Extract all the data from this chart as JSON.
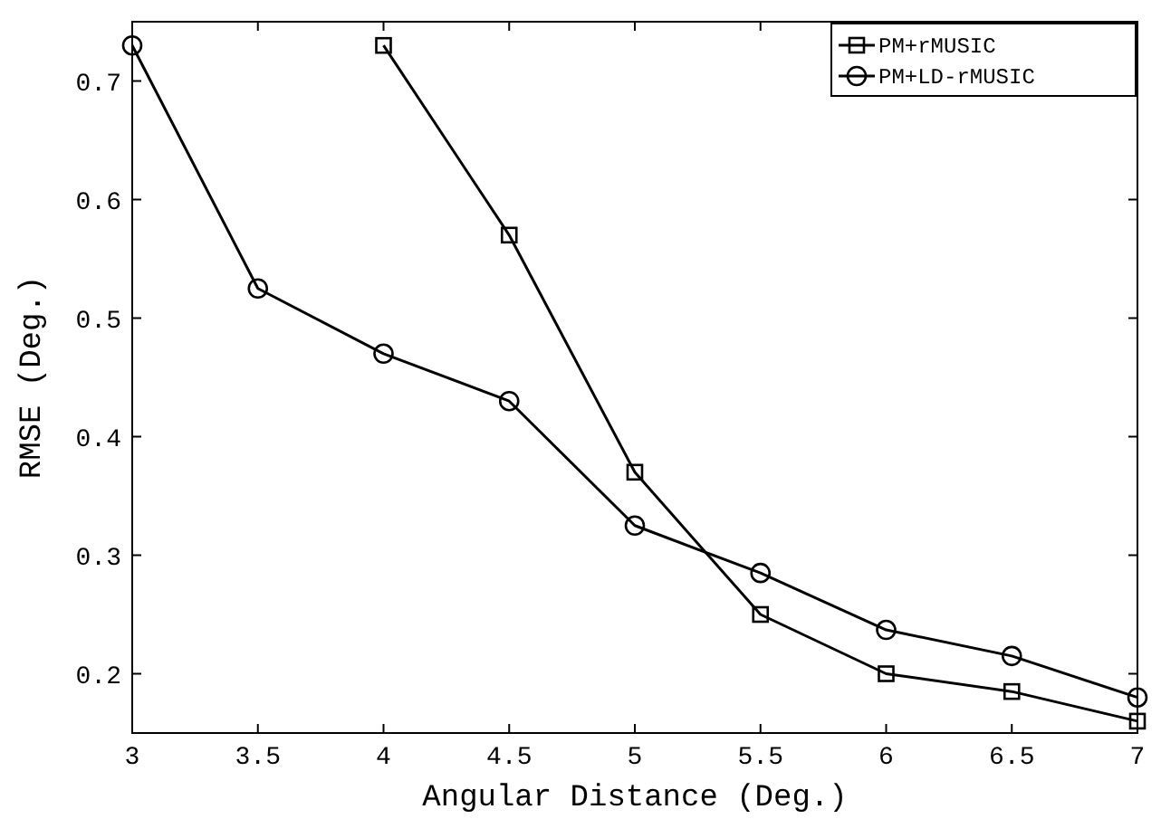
{
  "chart_data": {
    "type": "line",
    "xlabel": "Angular Distance (Deg.)",
    "ylabel": "RMSE (Deg.)",
    "xlim": [
      3,
      7
    ],
    "xticks": [
      3,
      3.5,
      4,
      4.5,
      5,
      5.5,
      6,
      6.5,
      7
    ],
    "ylim": [
      0.15,
      0.75
    ],
    "yticks": [
      0.2,
      0.3,
      0.4,
      0.5,
      0.6,
      0.7
    ],
    "legend": "top right",
    "grid": false,
    "series": [
      {
        "name": "PM+rMUSIC",
        "color": "#000000",
        "marker": "square",
        "x": [
          4,
          4.5,
          5,
          5.5,
          6,
          6.5,
          7
        ],
        "values": [
          0.73,
          0.57,
          0.37,
          0.25,
          0.2,
          0.185,
          0.16
        ]
      },
      {
        "name": "PM+LD-rMUSIC",
        "color": "#000000",
        "marker": "circle",
        "x": [
          3,
          3.5,
          4,
          4.5,
          5,
          5.5,
          6,
          6.5,
          7
        ],
        "values": [
          0.73,
          0.525,
          0.47,
          0.43,
          0.325,
          0.285,
          0.237,
          0.215,
          0.18
        ]
      }
    ]
  }
}
